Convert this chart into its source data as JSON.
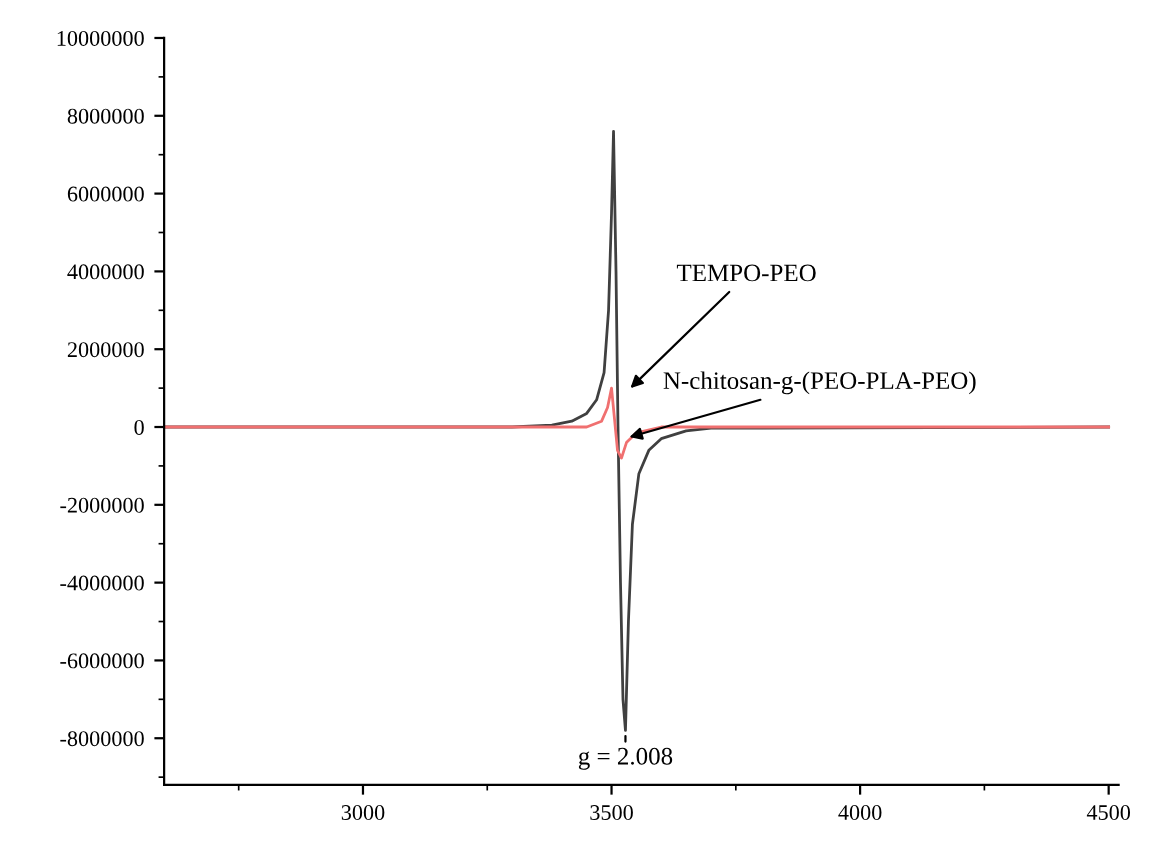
{
  "chart_data": {
    "type": "line",
    "xlim": [
      2600,
      4520
    ],
    "xticks": [
      3000,
      3500,
      4000,
      4500
    ],
    "ylim": [
      -9200000,
      10000000
    ],
    "yticks": [
      -8000000,
      -6000000,
      -4000000,
      -2000000,
      0,
      2000000,
      4000000,
      6000000,
      8000000,
      10000000
    ],
    "grid": false,
    "legend": false,
    "marker": "none",
    "line_style": "solid",
    "series": [
      {
        "color": "#404040",
        "x": [
          2600,
          3300,
          3380,
          3420,
          3450,
          3470,
          3485,
          3494,
          3500,
          3504,
          3509,
          3513,
          3518,
          3523,
          3528,
          3534,
          3542,
          3555,
          3575,
          3600,
          3650,
          3700,
          4500
        ],
        "values": [
          0,
          0,
          50000,
          150000,
          350000,
          700000,
          1400000,
          3000000,
          5500000,
          7600000,
          4000000,
          0,
          -4000000,
          -7000000,
          -7800000,
          -5000000,
          -2500000,
          -1200000,
          -600000,
          -300000,
          -100000,
          -30000,
          0
        ]
      },
      {
        "color": "#f07070",
        "x": [
          2600,
          3450,
          3480,
          3492,
          3500,
          3506,
          3512,
          3520,
          3530,
          3550,
          3600,
          4500
        ],
        "values": [
          0,
          0,
          150000,
          500000,
          1000000,
          200000,
          -600000,
          -800000,
          -400000,
          -150000,
          0,
          0
        ]
      }
    ],
    "annotations": [
      {
        "text": "TEMPO-PEO",
        "x": 3530,
        "y": 900000
      },
      {
        "text": "N-chitosan-g-(PEO-PLA-PEO)",
        "x": 3525,
        "y": -300000
      },
      {
        "text": "g = 2.008",
        "x": 3528,
        "y": -7800000
      }
    ]
  }
}
